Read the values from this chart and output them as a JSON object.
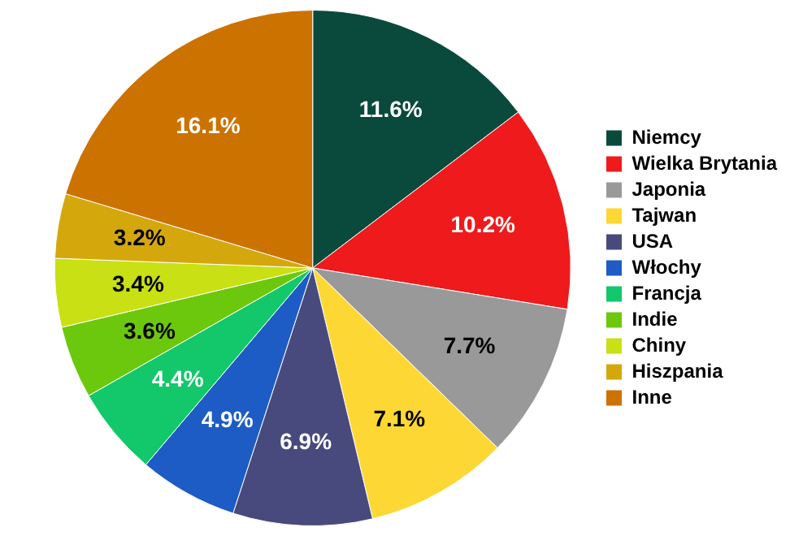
{
  "chart_data": {
    "type": "pie",
    "categories": [
      "Niemcy",
      "Wielka Brytania",
      "Japonia",
      "Tajwan",
      "USA",
      "Włochy",
      "Francja",
      "Indie",
      "Chiny",
      "Hiszpania",
      "Inne"
    ],
    "values": [
      11.6,
      10.2,
      7.7,
      7.1,
      6.9,
      4.9,
      4.4,
      3.6,
      3.4,
      3.2,
      16.1
    ],
    "colors": [
      "#0a4a3c",
      "#ee1a1c",
      "#999999",
      "#fdd835",
      "#484a7e",
      "#1c5cc4",
      "#12c86a",
      "#6cc80c",
      "#c8e014",
      "#d4a80c",
      "#cc7200"
    ],
    "value_labels": [
      "11.6%",
      "10.2%",
      "7.7%",
      "7.1%",
      "6.9%",
      "4.9%",
      "4.4%",
      "3.6%",
      "3.4%",
      "3.2%",
      "16.1%"
    ],
    "legend": "right"
  }
}
